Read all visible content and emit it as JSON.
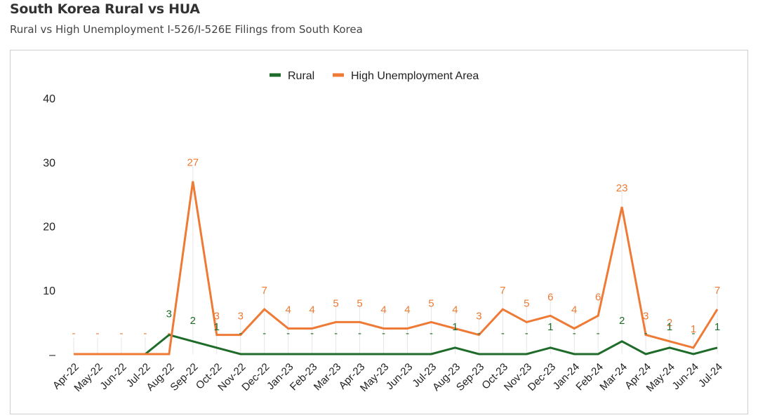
{
  "header": {
    "title": "South Korea Rural vs HUA",
    "subtitle": "Rural vs High Unemployment I-526/I-526E Filings from South Korea"
  },
  "chart_data": {
    "type": "line",
    "title": "South Korea Rural vs HUA",
    "subtitle": "Rural vs High Unemployment I-526/I-526E Filings from South Korea",
    "xlabel": "",
    "ylabel": "",
    "ylim": [
      0,
      40
    ],
    "y_ticks": [
      "–",
      "10",
      "20",
      "30",
      "40"
    ],
    "grid": false,
    "legend_position": "top-center",
    "categories": [
      "Apr-22",
      "May-22",
      "Jun-22",
      "Jul-22",
      "Aug-22",
      "Sep-22",
      "Oct-22",
      "Nov-22",
      "Dec-22",
      "Jan-23",
      "Feb-23",
      "Mar-23",
      "Apr-23",
      "May-23",
      "Jun-23",
      "Jul-23",
      "Aug-23",
      "Sep-23",
      "Oct-23",
      "Nov-23",
      "Dec-23",
      "Jan-24",
      "Feb-24",
      "Mar-24",
      "Apr-24",
      "May-24",
      "Jun-24",
      "Jul-24"
    ],
    "series": [
      {
        "name": "Rural",
        "color": "#1e6b2a",
        "values": [
          0,
          0,
          0,
          0,
          3,
          2,
          1,
          0,
          0,
          0,
          0,
          0,
          0,
          0,
          0,
          0,
          1,
          0,
          0,
          0,
          1,
          0,
          0,
          2,
          0,
          1,
          0,
          1
        ],
        "labels": [
          "",
          "",
          "",
          "",
          "3",
          "2",
          "1",
          "-",
          "-",
          "-",
          "-",
          "-",
          "-",
          "-",
          "-",
          "-",
          "1",
          "-",
          "-",
          "-",
          "1",
          "-",
          "-",
          "2",
          "-",
          "1",
          "-",
          "1"
        ]
      },
      {
        "name": "High Unemployment Area",
        "color": "#ee7a35",
        "values": [
          0,
          0,
          0,
          0,
          0,
          27,
          3,
          3,
          7,
          4,
          4,
          5,
          5,
          4,
          4,
          5,
          4,
          3,
          7,
          5,
          6,
          4,
          6,
          23,
          3,
          2,
          1,
          7
        ],
        "labels": [
          "-",
          "-",
          "-",
          "-",
          "-",
          "27",
          "3",
          "3",
          "7",
          "4",
          "4",
          "5",
          "5",
          "4",
          "4",
          "5",
          "4",
          "3",
          "7",
          "5",
          "6",
          "4",
          "6",
          "23",
          "3",
          "2",
          "1",
          "7"
        ]
      }
    ]
  }
}
